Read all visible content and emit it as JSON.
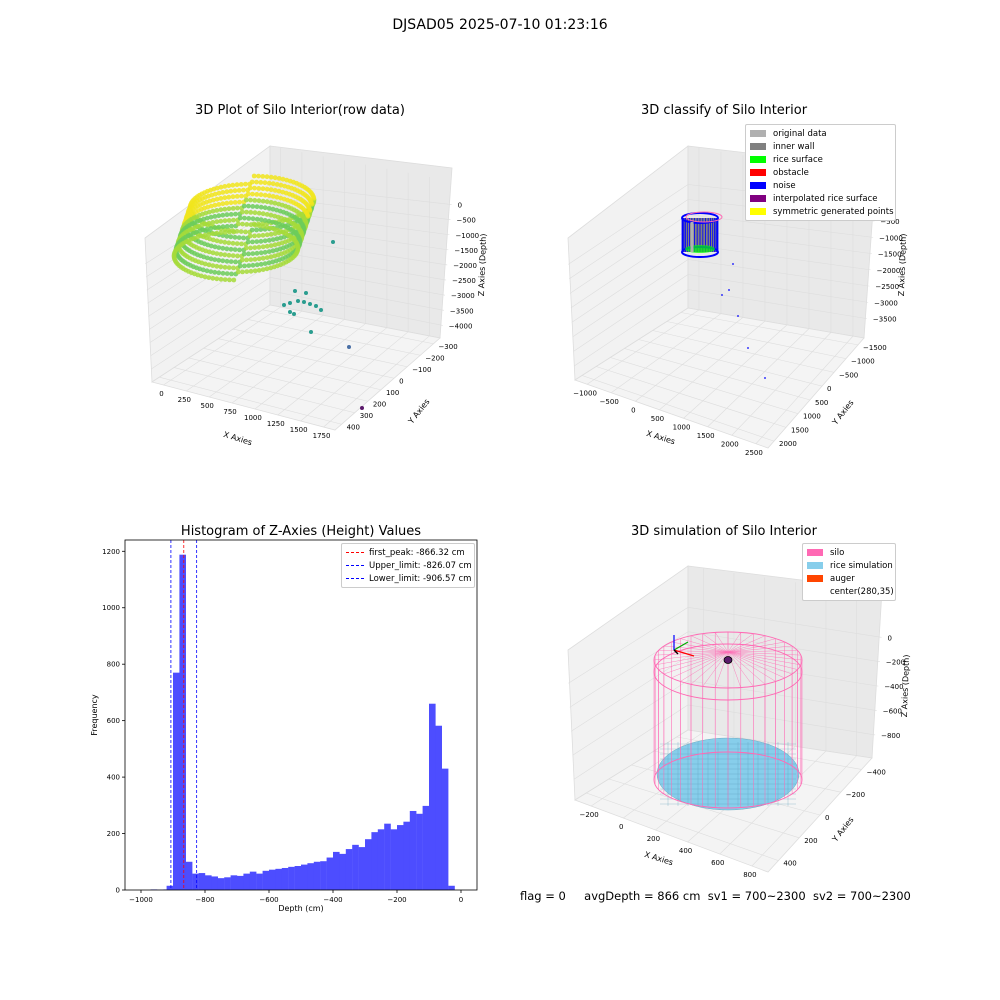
{
  "suptitle": "DJSAD05 2025-07-10 01:23:16",
  "colors": {
    "raw_yellow": "#f1e51d",
    "raw_green": "#6ccd5a",
    "raw_teal": "#2a9d8f",
    "gray_light": "#b0b0b0",
    "gray_dark": "#808080",
    "green": "#00ff00",
    "red": "#ff0000",
    "blue": "#0000ff",
    "purple": "#800080",
    "yellow": "#ffff00",
    "hist_bar": "#4d4dff",
    "silo": "#ff69b4",
    "rice": "#87ceeb",
    "auger": "#ff4500"
  },
  "plots": {
    "raw": {
      "title": "3D Plot of Silo Interior(row data)",
      "xlabel": "X Axies",
      "ylabel": "Y Axies",
      "zlabel": "Z Axies (Depth)",
      "xticks": [
        "0",
        "250",
        "500",
        "750",
        "1000",
        "1250",
        "1500",
        "1750"
      ],
      "yticks": [
        "400",
        "300",
        "200",
        "100",
        "0",
        "−100",
        "−200",
        "−300"
      ],
      "zticks": [
        "0",
        "−500",
        "−1000",
        "−1500",
        "−2000",
        "−2500",
        "−3000",
        "−3500",
        "−4000"
      ]
    },
    "classify": {
      "title": "3D classify of Silo Interior",
      "xlabel": "X Axies",
      "ylabel": "Y Axies",
      "zlabel": "Z Axies (Depth)",
      "xticks": [
        "−1000",
        "−500",
        "0",
        "500",
        "1000",
        "1500",
        "2000",
        "2500"
      ],
      "yticks": [
        "2000",
        "1500",
        "1000",
        "500",
        "0",
        "−500",
        "−1000",
        "−1500"
      ],
      "zticks": [
        "0",
        "−500",
        "−1000",
        "−1500",
        "−2000",
        "−2500",
        "−3000",
        "−3500"
      ],
      "legend": [
        {
          "label": "original data",
          "color": "#b0b0b0"
        },
        {
          "label": "inner wall",
          "color": "#808080"
        },
        {
          "label": "rice surface",
          "color": "#00ff00"
        },
        {
          "label": "obstacle",
          "color": "#ff0000"
        },
        {
          "label": "noise",
          "color": "#0000ff"
        },
        {
          "label": "interpolated rice surface",
          "color": "#800080"
        },
        {
          "label": "symmetric generated points",
          "color": "#ffff00"
        }
      ]
    },
    "simulation": {
      "title": "3D simulation of Silo Interior",
      "xlabel": "X Axies",
      "ylabel": "Y Axies",
      "zlabel": "Z Axies (Depth)",
      "xticks": [
        "−200",
        "0",
        "200",
        "400",
        "600",
        "800"
      ],
      "yticks": [
        "400",
        "200",
        "0",
        "−200",
        "−400"
      ],
      "zticks": [
        "0",
        "−200",
        "−400",
        "−600",
        "−800"
      ],
      "legend": [
        {
          "label": "silo",
          "color": "#ff69b4"
        },
        {
          "label": "rice simulation",
          "color": "#87ceeb"
        },
        {
          "label": "auger",
          "color": "#ff4500"
        },
        {
          "label": "center(280,35)",
          "color": ""
        }
      ]
    }
  },
  "chart_data": [
    {
      "type": "scatter",
      "title": "3D Plot of Silo Interior(row data)",
      "xlabel": "X Axies",
      "ylabel": "Y Axies",
      "zlabel": "Z Axies (Depth)",
      "xlim": [
        -100,
        1850
      ],
      "ylim": [
        -350,
        450
      ],
      "zlim": [
        -4100,
        100
      ]
    },
    {
      "type": "scatter",
      "title": "3D classify of Silo Interior",
      "xlabel": "X Axies",
      "ylabel": "Y Axies",
      "zlabel": "Z Axies (Depth)",
      "xlim": [
        -1100,
        2700
      ],
      "ylim": [
        -1700,
        2100
      ],
      "zlim": [
        -3700,
        100
      ],
      "series": [
        {
          "name": "original data"
        },
        {
          "name": "inner wall"
        },
        {
          "name": "rice surface"
        },
        {
          "name": "obstacle"
        },
        {
          "name": "noise"
        },
        {
          "name": "interpolated rice surface"
        },
        {
          "name": "symmetric generated points"
        }
      ]
    },
    {
      "type": "bar",
      "title": "Histogram of Z-Axies (Height) Values",
      "xlabel": "Depth (cm)",
      "ylabel": "Frequency",
      "xlim": [
        -1050,
        50
      ],
      "ylim": [
        0,
        1240
      ],
      "xticks": [
        -1000,
        -800,
        -600,
        -400,
        -200,
        0
      ],
      "yticks": [
        0,
        200,
        400,
        600,
        800,
        1000,
        1200
      ],
      "bin_width": 20,
      "bins": [
        [
          -960,
          2
        ],
        [
          -940,
          1
        ],
        [
          -920,
          2
        ],
        [
          -910,
          15
        ],
        [
          -890,
          770
        ],
        [
          -870,
          1188
        ],
        [
          -850,
          100
        ],
        [
          -830,
          58
        ],
        [
          -810,
          60
        ],
        [
          -790,
          52
        ],
        [
          -770,
          48
        ],
        [
          -750,
          42
        ],
        [
          -730,
          45
        ],
        [
          -710,
          52
        ],
        [
          -690,
          50
        ],
        [
          -670,
          58
        ],
        [
          -650,
          65
        ],
        [
          -630,
          58
        ],
        [
          -610,
          68
        ],
        [
          -590,
          72
        ],
        [
          -570,
          75
        ],
        [
          -550,
          78
        ],
        [
          -530,
          82
        ],
        [
          -510,
          85
        ],
        [
          -490,
          90
        ],
        [
          -470,
          95
        ],
        [
          -450,
          100
        ],
        [
          -430,
          102
        ],
        [
          -410,
          115
        ],
        [
          -390,
          135
        ],
        [
          -370,
          128
        ],
        [
          -350,
          145
        ],
        [
          -330,
          160
        ],
        [
          -310,
          152
        ],
        [
          -290,
          180
        ],
        [
          -270,
          205
        ],
        [
          -250,
          215
        ],
        [
          -230,
          235
        ],
        [
          -210,
          215
        ],
        [
          -190,
          230
        ],
        [
          -170,
          242
        ],
        [
          -150,
          280
        ],
        [
          -130,
          270
        ],
        [
          -110,
          298
        ],
        [
          -90,
          660
        ],
        [
          -70,
          582
        ],
        [
          -50,
          430
        ],
        [
          -30,
          15
        ]
      ],
      "lines": [
        {
          "label": "first_peak: -866.32 cm",
          "x": -866.32,
          "color": "#ff0000"
        },
        {
          "label": "Upper_limit: -826.07 cm",
          "x": -826.07,
          "color": "#0000ff"
        },
        {
          "label": "Lower_limit: -906.57 cm",
          "x": -906.57,
          "color": "#0000ff"
        }
      ]
    },
    {
      "type": "scatter",
      "title": "3D simulation of Silo Interior",
      "xlabel": "X Axies",
      "ylabel": "Y Axies",
      "zlabel": "Z Axies (Depth)",
      "xlim": [
        -250,
        850
      ],
      "ylim": [
        -500,
        500
      ],
      "zlim": [
        -900,
        100
      ],
      "series": [
        {
          "name": "silo"
        },
        {
          "name": "rice simulation"
        },
        {
          "name": "auger"
        }
      ],
      "center": [
        280,
        35
      ]
    }
  ],
  "footer": {
    "flag": "flag = 0",
    "avg": "avgDepth = 866 cm",
    "sv1": "sv1 = 700~2300",
    "sv2": "sv2 = 700~2300"
  }
}
